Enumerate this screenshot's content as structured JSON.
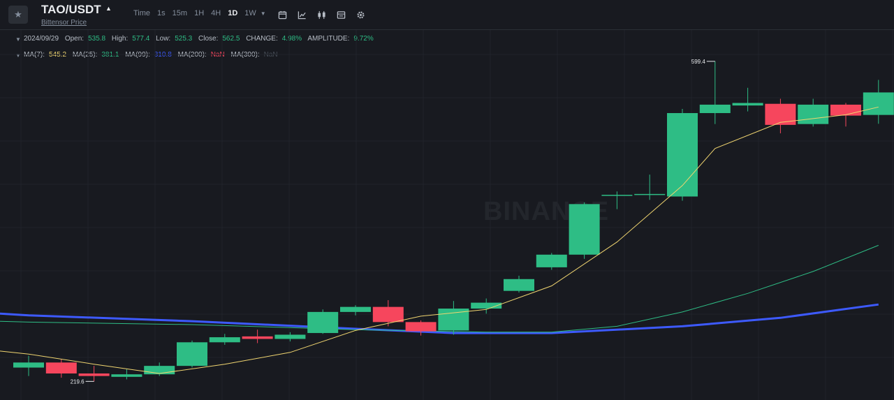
{
  "header": {
    "pair": "TAO/USDT",
    "subtitle": "Bittensor Price",
    "intervals": [
      "Time",
      "1s",
      "15m",
      "1H",
      "4H",
      "1D",
      "1W"
    ],
    "active_interval": "1D",
    "tool_icons": [
      "calendar-icon",
      "indicator-chart-icon",
      "candle-type-icon",
      "layout-icon",
      "settings-icon"
    ]
  },
  "ohlc_bar": {
    "date": "2024/09/29",
    "open_label": "Open:",
    "open": "535.8",
    "high_label": "High:",
    "high": "577.4",
    "low_label": "Low:",
    "low": "525.3",
    "close_label": "Close:",
    "close": "562.5",
    "change_label": "CHANGE:",
    "change": "4.98%",
    "amplitude_label": "AMPLITUDE:",
    "amplitude": "9.72%"
  },
  "ma_bar": [
    {
      "label": "MA(7):",
      "value": "545.2",
      "color": "#f0d570"
    },
    {
      "label": "MA(25):",
      "value": "381.1",
      "color": "#2ebd85"
    },
    {
      "label": "MA(99):",
      "value": "310.8",
      "color": "#3d5afe"
    },
    {
      "label": "MA(200):",
      "value": "NaN",
      "color": "#f6465d"
    },
    {
      "label": "MA(300):",
      "value": "NaN",
      "color": "#474d57"
    }
  ],
  "watermark": "BINANCE",
  "colors": {
    "up": "#2ebd85",
    "down": "#f6465d",
    "background": "#181a20",
    "grid": "#20232a"
  },
  "chart_data": {
    "type": "candlestick",
    "title": "TAO/USDT",
    "ylim": [
      200,
      620
    ],
    "high_annotation": "599.4",
    "low_annotation": "219.6",
    "candles": [
      {
        "o": 236,
        "h": 250,
        "l": 226,
        "c": 242
      },
      {
        "o": 242,
        "h": 246,
        "l": 224,
        "c": 229
      },
      {
        "o": 229,
        "h": 238,
        "l": 219.6,
        "c": 226
      },
      {
        "o": 225,
        "h": 234,
        "l": 222,
        "c": 228
      },
      {
        "o": 228,
        "h": 242,
        "l": 226,
        "c": 238
      },
      {
        "o": 238,
        "h": 268,
        "l": 236,
        "c": 266
      },
      {
        "o": 266,
        "h": 276,
        "l": 263,
        "c": 272
      },
      {
        "o": 273,
        "h": 281,
        "l": 265,
        "c": 270
      },
      {
        "o": 270,
        "h": 278,
        "l": 267,
        "c": 275
      },
      {
        "o": 277,
        "h": 305,
        "l": 276,
        "c": 302
      },
      {
        "o": 302,
        "h": 310,
        "l": 298,
        "c": 308
      },
      {
        "o": 308,
        "h": 316,
        "l": 285,
        "c": 290
      },
      {
        "o": 290,
        "h": 292,
        "l": 274,
        "c": 279
      },
      {
        "o": 280,
        "h": 315,
        "l": 275,
        "c": 306
      },
      {
        "o": 306,
        "h": 318,
        "l": 300,
        "c": 313
      },
      {
        "o": 327,
        "h": 345,
        "l": 325,
        "c": 341
      },
      {
        "o": 355,
        "h": 372,
        "l": 352,
        "c": 370
      },
      {
        "o": 370,
        "h": 432,
        "l": 365,
        "c": 430
      },
      {
        "o": 441,
        "h": 445,
        "l": 424,
        "c": 441
      },
      {
        "o": 441,
        "h": 465,
        "l": 435,
        "c": 442
      },
      {
        "o": 439,
        "h": 543,
        "l": 434,
        "c": 538
      },
      {
        "o": 538,
        "h": 599.4,
        "l": 525,
        "c": 548
      },
      {
        "o": 547,
        "h": 568,
        "l": 540,
        "c": 550
      },
      {
        "o": 549,
        "h": 555,
        "l": 514,
        "c": 524
      },
      {
        "o": 525,
        "h": 555,
        "l": 522,
        "c": 548
      },
      {
        "o": 548,
        "h": 550,
        "l": 522,
        "c": 535
      },
      {
        "o": 535.8,
        "h": 577.4,
        "l": 525.3,
        "c": 562.5
      }
    ],
    "ma7": [
      {
        "i": 0,
        "v": 252
      },
      {
        "i": 2,
        "v": 240
      },
      {
        "i": 4,
        "v": 229
      },
      {
        "i": 6,
        "v": 240
      },
      {
        "i": 8,
        "v": 254
      },
      {
        "i": 10,
        "v": 280
      },
      {
        "i": 12,
        "v": 297
      },
      {
        "i": 14,
        "v": 305
      },
      {
        "i": 16,
        "v": 333
      },
      {
        "i": 18,
        "v": 385
      },
      {
        "i": 20,
        "v": 452
      },
      {
        "i": 21,
        "v": 496
      },
      {
        "i": 23,
        "v": 527
      },
      {
        "i": 25,
        "v": 536
      },
      {
        "i": 26,
        "v": 545.2
      }
    ],
    "ma25": [
      {
        "i": 0,
        "v": 290
      },
      {
        "i": 5,
        "v": 287
      },
      {
        "i": 10,
        "v": 281
      },
      {
        "i": 14,
        "v": 278
      },
      {
        "i": 16,
        "v": 278
      },
      {
        "i": 18,
        "v": 285
      },
      {
        "i": 20,
        "v": 302
      },
      {
        "i": 22,
        "v": 324
      },
      {
        "i": 24,
        "v": 350
      },
      {
        "i": 26,
        "v": 381.1
      }
    ],
    "ma99": [
      {
        "i": 0,
        "v": 298
      },
      {
        "i": 5,
        "v": 291
      },
      {
        "i": 10,
        "v": 282
      },
      {
        "i": 13,
        "v": 277
      },
      {
        "i": 16,
        "v": 277
      },
      {
        "i": 20,
        "v": 285
      },
      {
        "i": 23,
        "v": 295
      },
      {
        "i": 26,
        "v": 310.8
      }
    ]
  }
}
